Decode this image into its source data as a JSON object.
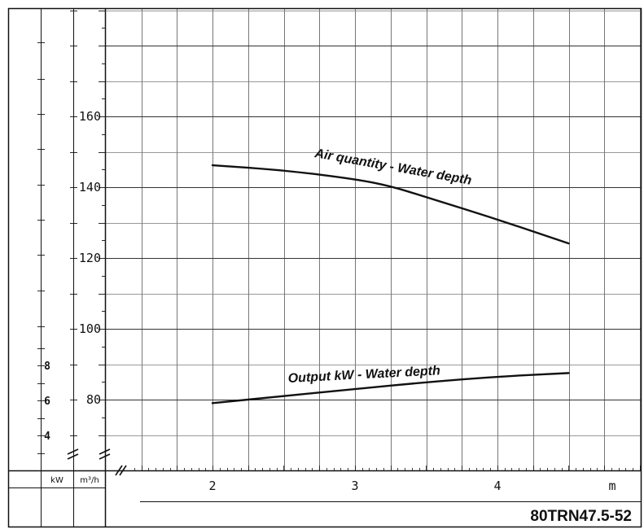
{
  "chart_data": {
    "type": "line",
    "title": "",
    "model": "80TRN47.5-52",
    "xlabel": "",
    "x_unit": "m",
    "xlim": [
      1.3,
      5.1
    ],
    "x_ticks": [
      "2",
      "3",
      "4"
    ],
    "y_air_unit": "m³/h",
    "y_air_ticks": [
      "80",
      "100",
      "120",
      "140",
      "160"
    ],
    "y_air_lim": [
      70,
      190
    ],
    "y_kw_unit": "kW",
    "y_kw_ticks": [
      "4",
      "6",
      "8"
    ],
    "y_kw_lim": [
      2.4,
      10
    ],
    "grid": true,
    "legend": "none",
    "series": [
      {
        "name": "Air quantity - Water depth",
        "axis": "air",
        "x": [
          2.0,
          2.5,
          3.0,
          3.25,
          3.5,
          4.0,
          4.5
        ],
        "y": [
          146.2,
          144.8,
          142.3,
          140.3,
          137.2,
          130.9,
          124.1
        ]
      },
      {
        "name": "Output kW - Water depth",
        "axis": "air",
        "x": [
          2.0,
          2.5,
          3.0,
          3.5,
          4.0,
          4.5
        ],
        "y": [
          79.0,
          81.0,
          83.0,
          84.9,
          86.5,
          87.5
        ]
      }
    ]
  }
}
